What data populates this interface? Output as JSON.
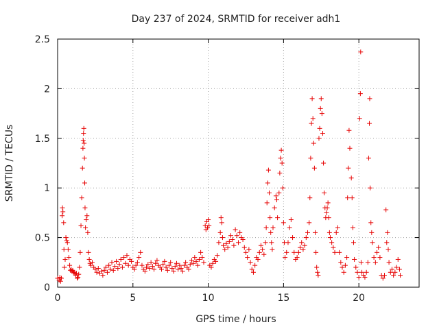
{
  "chart_data": {
    "type": "scatter",
    "title": "Day 237 of 2024, SRMTID for receiver adh1",
    "xlabel": "GPS time / hours",
    "ylabel": "SRMTID / TECUs",
    "xlim": [
      0,
      24
    ],
    "ylim": [
      0,
      2.5
    ],
    "xticks": [
      "0",
      "5",
      "10",
      "15",
      "20"
    ],
    "yticks": [
      "0",
      "0.5",
      "1",
      "1.5",
      "2",
      "2.5"
    ],
    "grid": true,
    "marker": "+",
    "color": "#e60000",
    "series": [
      {
        "name": "adh1",
        "points": [
          [
            0.0,
            0.09
          ],
          [
            0.1,
            0.07
          ],
          [
            0.15,
            0.1
          ],
          [
            0.2,
            0.06
          ],
          [
            0.25,
            0.09
          ],
          [
            0.3,
            0.72
          ],
          [
            0.32,
            0.8
          ],
          [
            0.35,
            0.76
          ],
          [
            0.4,
            0.65
          ],
          [
            0.42,
            0.38
          ],
          [
            0.45,
            0.2
          ],
          [
            0.5,
            0.28
          ],
          [
            0.55,
            0.5
          ],
          [
            0.6,
            0.47
          ],
          [
            0.65,
            0.45
          ],
          [
            0.7,
            0.38
          ],
          [
            0.75,
            0.3
          ],
          [
            0.8,
            0.22
          ],
          [
            0.85,
            0.17
          ],
          [
            0.9,
            0.18
          ],
          [
            0.95,
            0.16
          ],
          [
            1.0,
            0.17
          ],
          [
            1.05,
            0.15
          ],
          [
            1.1,
            0.15
          ],
          [
            1.15,
            0.14
          ],
          [
            1.2,
            0.12
          ],
          [
            1.25,
            0.14
          ],
          [
            1.3,
            0.09
          ],
          [
            1.35,
            0.1
          ],
          [
            1.4,
            0.13
          ],
          [
            1.45,
            0.2
          ],
          [
            1.5,
            0.35
          ],
          [
            1.55,
            0.62
          ],
          [
            1.6,
            0.9
          ],
          [
            1.65,
            1.2
          ],
          [
            1.68,
            1.4
          ],
          [
            1.7,
            1.48
          ],
          [
            1.72,
            1.55
          ],
          [
            1.74,
            1.6
          ],
          [
            1.76,
            1.45
          ],
          [
            1.78,
            1.3
          ],
          [
            1.8,
            1.05
          ],
          [
            1.82,
            0.8
          ],
          [
            1.85,
            0.6
          ],
          [
            1.9,
            0.68
          ],
          [
            1.95,
            0.72
          ],
          [
            2.0,
            0.55
          ],
          [
            2.05,
            0.35
          ],
          [
            2.1,
            0.28
          ],
          [
            2.15,
            0.24
          ],
          [
            2.2,
            0.22
          ],
          [
            2.3,
            0.25
          ],
          [
            2.4,
            0.2
          ],
          [
            2.5,
            0.18
          ],
          [
            2.6,
            0.15
          ],
          [
            2.7,
            0.19
          ],
          [
            2.8,
            0.14
          ],
          [
            2.9,
            0.16
          ],
          [
            3.0,
            0.12
          ],
          [
            3.1,
            0.17
          ],
          [
            3.2,
            0.2
          ],
          [
            3.3,
            0.15
          ],
          [
            3.4,
            0.22
          ],
          [
            3.5,
            0.18
          ],
          [
            3.6,
            0.25
          ],
          [
            3.7,
            0.17
          ],
          [
            3.8,
            0.21
          ],
          [
            3.9,
            0.26
          ],
          [
            4.0,
            0.19
          ],
          [
            4.1,
            0.23
          ],
          [
            4.2,
            0.28
          ],
          [
            4.3,
            0.2
          ],
          [
            4.4,
            0.3
          ],
          [
            4.5,
            0.24
          ],
          [
            4.6,
            0.32
          ],
          [
            4.7,
            0.22
          ],
          [
            4.8,
            0.28
          ],
          [
            4.9,
            0.26
          ],
          [
            5.0,
            0.2
          ],
          [
            5.1,
            0.18
          ],
          [
            5.2,
            0.22
          ],
          [
            5.3,
            0.25
          ],
          [
            5.4,
            0.3
          ],
          [
            5.5,
            0.35
          ],
          [
            5.6,
            0.22
          ],
          [
            5.7,
            0.18
          ],
          [
            5.8,
            0.16
          ],
          [
            5.9,
            0.2
          ],
          [
            6.0,
            0.23
          ],
          [
            6.1,
            0.19
          ],
          [
            6.2,
            0.25
          ],
          [
            6.3,
            0.21
          ],
          [
            6.4,
            0.18
          ],
          [
            6.5,
            0.24
          ],
          [
            6.6,
            0.27
          ],
          [
            6.7,
            0.22
          ],
          [
            6.8,
            0.2
          ],
          [
            6.9,
            0.18
          ],
          [
            7.0,
            0.23
          ],
          [
            7.1,
            0.26
          ],
          [
            7.2,
            0.2
          ],
          [
            7.3,
            0.17
          ],
          [
            7.4,
            0.22
          ],
          [
            7.5,
            0.25
          ],
          [
            7.6,
            0.19
          ],
          [
            7.7,
            0.16
          ],
          [
            7.8,
            0.21
          ],
          [
            7.9,
            0.24
          ],
          [
            8.0,
            0.18
          ],
          [
            8.1,
            0.22
          ],
          [
            8.2,
            0.19
          ],
          [
            8.3,
            0.16
          ],
          [
            8.4,
            0.22
          ],
          [
            8.5,
            0.25
          ],
          [
            8.6,
            0.2
          ],
          [
            8.7,
            0.18
          ],
          [
            8.8,
            0.23
          ],
          [
            8.9,
            0.27
          ],
          [
            9.0,
            0.24
          ],
          [
            9.1,
            0.3
          ],
          [
            9.2,
            0.26
          ],
          [
            9.3,
            0.22
          ],
          [
            9.4,
            0.28
          ],
          [
            9.5,
            0.35
          ],
          [
            9.6,
            0.3
          ],
          [
            9.7,
            0.25
          ],
          [
            9.8,
            0.62
          ],
          [
            9.85,
            0.58
          ],
          [
            9.9,
            0.66
          ],
          [
            9.95,
            0.6
          ],
          [
            10.0,
            0.68
          ],
          [
            10.05,
            0.62
          ],
          [
            10.1,
            0.22
          ],
          [
            10.2,
            0.2
          ],
          [
            10.3,
            0.24
          ],
          [
            10.4,
            0.28
          ],
          [
            10.5,
            0.26
          ],
          [
            10.6,
            0.32
          ],
          [
            10.7,
            0.45
          ],
          [
            10.8,
            0.55
          ],
          [
            10.85,
            0.7
          ],
          [
            10.9,
            0.65
          ],
          [
            10.95,
            0.5
          ],
          [
            11.0,
            0.42
          ],
          [
            11.1,
            0.38
          ],
          [
            11.2,
            0.44
          ],
          [
            11.3,
            0.4
          ],
          [
            11.4,
            0.46
          ],
          [
            11.5,
            0.52
          ],
          [
            11.6,
            0.48
          ],
          [
            11.7,
            0.42
          ],
          [
            11.8,
            0.58
          ],
          [
            11.9,
            0.52
          ],
          [
            12.0,
            0.45
          ],
          [
            12.1,
            0.55
          ],
          [
            12.2,
            0.5
          ],
          [
            12.3,
            0.48
          ],
          [
            12.4,
            0.4
          ],
          [
            12.5,
            0.35
          ],
          [
            12.6,
            0.3
          ],
          [
            12.7,
            0.38
          ],
          [
            12.8,
            0.25
          ],
          [
            12.9,
            0.18
          ],
          [
            13.0,
            0.15
          ],
          [
            13.1,
            0.22
          ],
          [
            13.2,
            0.3
          ],
          [
            13.3,
            0.28
          ],
          [
            13.4,
            0.35
          ],
          [
            13.5,
            0.42
          ],
          [
            13.6,
            0.38
          ],
          [
            13.7,
            0.33
          ],
          [
            13.8,
            0.45
          ],
          [
            13.85,
            0.6
          ],
          [
            13.9,
            0.85
          ],
          [
            13.95,
            1.05
          ],
          [
            14.0,
            1.18
          ],
          [
            14.05,
            0.95
          ],
          [
            14.1,
            0.7
          ],
          [
            14.15,
            0.55
          ],
          [
            14.2,
            0.45
          ],
          [
            14.25,
            0.38
          ],
          [
            14.3,
            0.6
          ],
          [
            14.4,
            0.8
          ],
          [
            14.5,
            0.92
          ],
          [
            14.55,
            0.88
          ],
          [
            14.6,
            0.7
          ],
          [
            14.7,
            0.95
          ],
          [
            14.75,
            1.15
          ],
          [
            14.8,
            1.3
          ],
          [
            14.85,
            1.38
          ],
          [
            14.9,
            1.25
          ],
          [
            14.95,
            1.0
          ],
          [
            15.0,
            0.65
          ],
          [
            15.05,
            0.45
          ],
          [
            15.1,
            0.3
          ],
          [
            15.2,
            0.35
          ],
          [
            15.3,
            0.45
          ],
          [
            15.4,
            0.6
          ],
          [
            15.5,
            0.68
          ],
          [
            15.6,
            0.5
          ],
          [
            15.7,
            0.35
          ],
          [
            15.8,
            0.28
          ],
          [
            15.9,
            0.3
          ],
          [
            16.0,
            0.35
          ],
          [
            16.1,
            0.4
          ],
          [
            16.2,
            0.45
          ],
          [
            16.3,
            0.38
          ],
          [
            16.4,
            0.42
          ],
          [
            16.5,
            0.5
          ],
          [
            16.6,
            0.55
          ],
          [
            16.7,
            0.65
          ],
          [
            16.75,
            0.9
          ],
          [
            16.8,
            1.3
          ],
          [
            16.85,
            1.65
          ],
          [
            16.9,
            1.9
          ],
          [
            16.95,
            1.7
          ],
          [
            17.0,
            1.45
          ],
          [
            17.05,
            1.2
          ],
          [
            17.1,
            0.55
          ],
          [
            17.15,
            0.35
          ],
          [
            17.2,
            0.2
          ],
          [
            17.25,
            0.15
          ],
          [
            17.3,
            0.12
          ],
          [
            17.35,
            1.5
          ],
          [
            17.4,
            1.6
          ],
          [
            17.45,
            1.8
          ],
          [
            17.5,
            1.9
          ],
          [
            17.55,
            1.75
          ],
          [
            17.6,
            1.55
          ],
          [
            17.65,
            1.25
          ],
          [
            17.7,
            0.95
          ],
          [
            17.75,
            0.8
          ],
          [
            17.8,
            0.7
          ],
          [
            17.85,
            0.75
          ],
          [
            17.9,
            0.8
          ],
          [
            17.95,
            0.85
          ],
          [
            18.0,
            0.7
          ],
          [
            18.05,
            0.55
          ],
          [
            18.1,
            0.5
          ],
          [
            18.2,
            0.45
          ],
          [
            18.3,
            0.4
          ],
          [
            18.4,
            0.35
          ],
          [
            18.5,
            0.55
          ],
          [
            18.6,
            0.6
          ],
          [
            18.7,
            0.35
          ],
          [
            18.8,
            0.25
          ],
          [
            18.9,
            0.2
          ],
          [
            19.0,
            0.15
          ],
          [
            19.1,
            0.22
          ],
          [
            19.2,
            0.3
          ],
          [
            19.25,
            0.9
          ],
          [
            19.3,
            1.2
          ],
          [
            19.35,
            1.58
          ],
          [
            19.4,
            1.4
          ],
          [
            19.5,
            1.1
          ],
          [
            19.55,
            0.9
          ],
          [
            19.6,
            0.6
          ],
          [
            19.65,
            0.45
          ],
          [
            19.7,
            0.28
          ],
          [
            19.8,
            0.2
          ],
          [
            19.9,
            0.15
          ],
          [
            20.0,
            0.1
          ],
          [
            20.05,
            1.7
          ],
          [
            20.1,
            1.95
          ],
          [
            20.12,
            2.37
          ],
          [
            20.15,
            0.25
          ],
          [
            20.2,
            0.15
          ],
          [
            20.3,
            0.12
          ],
          [
            20.4,
            0.1
          ],
          [
            20.5,
            0.15
          ],
          [
            20.6,
            0.25
          ],
          [
            20.65,
            1.3
          ],
          [
            20.7,
            1.65
          ],
          [
            20.72,
            1.9
          ],
          [
            20.75,
            1.0
          ],
          [
            20.8,
            0.65
          ],
          [
            20.85,
            0.55
          ],
          [
            20.9,
            0.45
          ],
          [
            21.0,
            0.3
          ],
          [
            21.1,
            0.25
          ],
          [
            21.2,
            0.35
          ],
          [
            21.3,
            0.4
          ],
          [
            21.4,
            0.3
          ],
          [
            21.5,
            0.12
          ],
          [
            21.6,
            0.09
          ],
          [
            21.7,
            0.12
          ],
          [
            21.8,
            0.78
          ],
          [
            21.85,
            0.45
          ],
          [
            21.9,
            0.55
          ],
          [
            21.95,
            0.38
          ],
          [
            22.0,
            0.25
          ],
          [
            22.1,
            0.15
          ],
          [
            22.2,
            0.18
          ],
          [
            22.3,
            0.12
          ],
          [
            22.4,
            0.15
          ],
          [
            22.5,
            0.2
          ],
          [
            22.6,
            0.28
          ],
          [
            22.7,
            0.18
          ],
          [
            22.75,
            0.12
          ]
        ]
      }
    ]
  }
}
